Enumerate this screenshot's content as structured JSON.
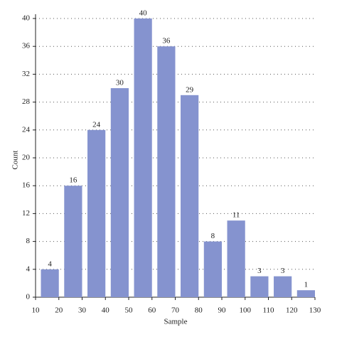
{
  "chart_data": {
    "type": "histogram",
    "xlabel": "Sample",
    "ylabel": "Count",
    "bins": [
      10,
      20,
      30,
      40,
      50,
      60,
      70,
      80,
      90,
      100,
      110,
      120,
      130
    ],
    "values": [
      4,
      16,
      24,
      30,
      40,
      36,
      29,
      8,
      11,
      3,
      3,
      1
    ],
    "color": "#8593cf",
    "xlim": [
      10,
      130
    ],
    "xticks": [
      10,
      20,
      30,
      40,
      50,
      60,
      70,
      80,
      90,
      100,
      110,
      120,
      130
    ],
    "ylim": [
      0,
      40
    ],
    "yticks": [
      0,
      4,
      8,
      12,
      16,
      20,
      24,
      28,
      32,
      36,
      40
    ],
    "grid": true
  }
}
